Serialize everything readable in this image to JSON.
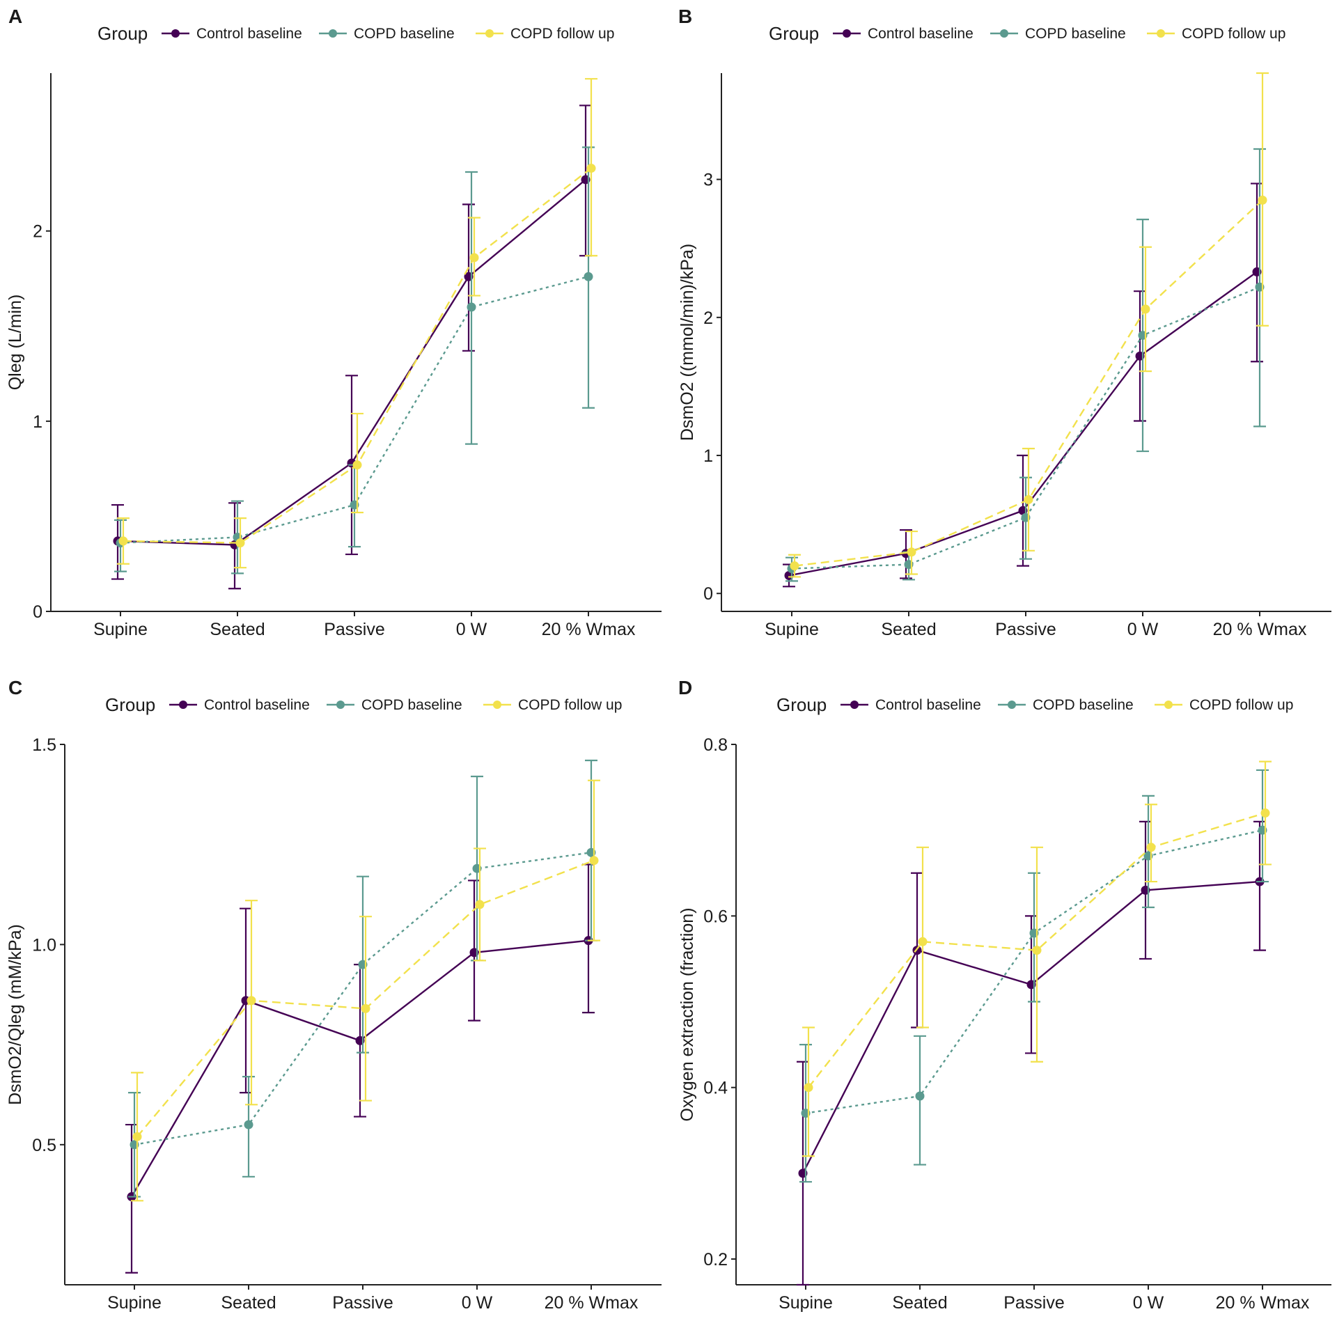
{
  "legend": {
    "title": "Group",
    "entries": [
      {
        "key": "control",
        "label": "Control baseline",
        "color": "#440154",
        "dash": "solid"
      },
      {
        "key": "copd",
        "label": "COPD baseline",
        "color": "#5b9a8f",
        "dash": "dotted"
      },
      {
        "key": "followup",
        "label": "COPD follow up",
        "color": "#f2e14c",
        "dash": "dashed"
      }
    ]
  },
  "chart_data": [
    {
      "panel": "A",
      "type": "line",
      "ylabel": "Qleg (L/min)",
      "categories": [
        "Supine",
        "Seated",
        "Passive",
        "0 W",
        "20 % Wmax"
      ],
      "ylim": [
        0,
        2.83
      ],
      "yticks": [
        0,
        1,
        2
      ],
      "series": [
        {
          "name": "Control baseline",
          "values": [
            0.37,
            0.35,
            0.78,
            1.76,
            2.27
          ],
          "lower": [
            0.17,
            0.12,
            0.3,
            1.37,
            1.87
          ],
          "upper": [
            0.56,
            0.57,
            1.24,
            2.14,
            2.66
          ]
        },
        {
          "name": "COPD baseline",
          "values": [
            0.36,
            0.39,
            0.56,
            1.6,
            1.76
          ],
          "lower": [
            0.21,
            0.2,
            0.34,
            0.88,
            1.07
          ],
          "upper": [
            0.48,
            0.58,
            0.77,
            2.31,
            2.44
          ]
        },
        {
          "name": "COPD follow up",
          "values": [
            0.37,
            0.36,
            0.77,
            1.86,
            2.33
          ],
          "lower": [
            0.25,
            0.23,
            0.52,
            1.66,
            1.87
          ],
          "upper": [
            0.49,
            0.49,
            1.04,
            2.07,
            2.8
          ]
        }
      ]
    },
    {
      "panel": "B",
      "type": "line",
      "ylabel": "DsmO2 ((mmol/min)/kPa)",
      "categories": [
        "Supine",
        "Seated",
        "Passive",
        "0 W",
        "20 % Wmax"
      ],
      "ylim": [
        -0.13,
        3.77
      ],
      "yticks": [
        0,
        1,
        2,
        3
      ],
      "series": [
        {
          "name": "Control baseline",
          "values": [
            0.13,
            0.29,
            0.6,
            1.72,
            2.33
          ],
          "lower": [
            0.05,
            0.11,
            0.2,
            1.25,
            1.68
          ],
          "upper": [
            0.21,
            0.46,
            1.0,
            2.19,
            2.97
          ]
        },
        {
          "name": "COPD baseline",
          "values": [
            0.18,
            0.21,
            0.55,
            1.87,
            2.22
          ],
          "lower": [
            0.09,
            0.1,
            0.25,
            1.03,
            1.21
          ],
          "upper": [
            0.26,
            0.3,
            0.84,
            2.71,
            3.22
          ]
        },
        {
          "name": "COPD follow up",
          "values": [
            0.2,
            0.3,
            0.68,
            2.06,
            2.85
          ],
          "lower": [
            0.12,
            0.14,
            0.31,
            1.61,
            1.94
          ],
          "upper": [
            0.28,
            0.45,
            1.05,
            2.51,
            3.77
          ]
        }
      ]
    },
    {
      "panel": "C",
      "type": "line",
      "ylabel": "DsmO2/Qleg (mM/kPa)",
      "categories": [
        "Supine",
        "Seated",
        "Passive",
        "0 W",
        "20 % Wmax"
      ],
      "ylim": [
        0.15,
        1.5
      ],
      "yticks": [
        0.5,
        1.0,
        1.5
      ],
      "tick_labels": [
        "0.5",
        "1.0",
        "1.5"
      ],
      "series": [
        {
          "name": "Control baseline",
          "values": [
            0.37,
            0.86,
            0.76,
            0.98,
            1.01
          ],
          "lower": [
            0.18,
            0.63,
            0.57,
            0.81,
            0.83
          ],
          "upper": [
            0.55,
            1.09,
            0.95,
            1.16,
            1.2
          ]
        },
        {
          "name": "COPD baseline",
          "values": [
            0.5,
            0.55,
            0.95,
            1.19,
            1.23
          ],
          "lower": [
            0.37,
            0.42,
            0.73,
            0.96,
            1.01
          ],
          "upper": [
            0.63,
            0.67,
            1.17,
            1.42,
            1.46
          ]
        },
        {
          "name": "COPD follow up",
          "values": [
            0.52,
            0.86,
            0.84,
            1.1,
            1.21
          ],
          "lower": [
            0.36,
            0.6,
            0.61,
            0.96,
            1.01
          ],
          "upper": [
            0.68,
            1.11,
            1.07,
            1.24,
            1.41
          ]
        }
      ]
    },
    {
      "panel": "D",
      "type": "line",
      "ylabel": "Oxygen extraction (fraction)",
      "categories": [
        "Supine",
        "Seated",
        "Passive",
        "0 W",
        "20 % Wmax"
      ],
      "ylim": [
        0.17,
        0.8
      ],
      "yticks": [
        0.2,
        0.4,
        0.6,
        0.8
      ],
      "series": [
        {
          "name": "Control baseline",
          "values": [
            0.3,
            0.56,
            0.52,
            0.63,
            0.64
          ],
          "lower": [
            0.17,
            0.47,
            0.44,
            0.55,
            0.56
          ],
          "upper": [
            0.43,
            0.65,
            0.6,
            0.71,
            0.71
          ]
        },
        {
          "name": "COPD baseline",
          "values": [
            0.37,
            0.39,
            0.58,
            0.67,
            0.7
          ],
          "lower": [
            0.29,
            0.31,
            0.5,
            0.61,
            0.64
          ],
          "upper": [
            0.45,
            0.46,
            0.65,
            0.74,
            0.77
          ]
        },
        {
          "name": "COPD follow up",
          "values": [
            0.4,
            0.57,
            0.56,
            0.68,
            0.72
          ],
          "lower": [
            0.32,
            0.47,
            0.43,
            0.64,
            0.66
          ],
          "upper": [
            0.47,
            0.68,
            0.68,
            0.73,
            0.78
          ]
        }
      ]
    }
  ]
}
